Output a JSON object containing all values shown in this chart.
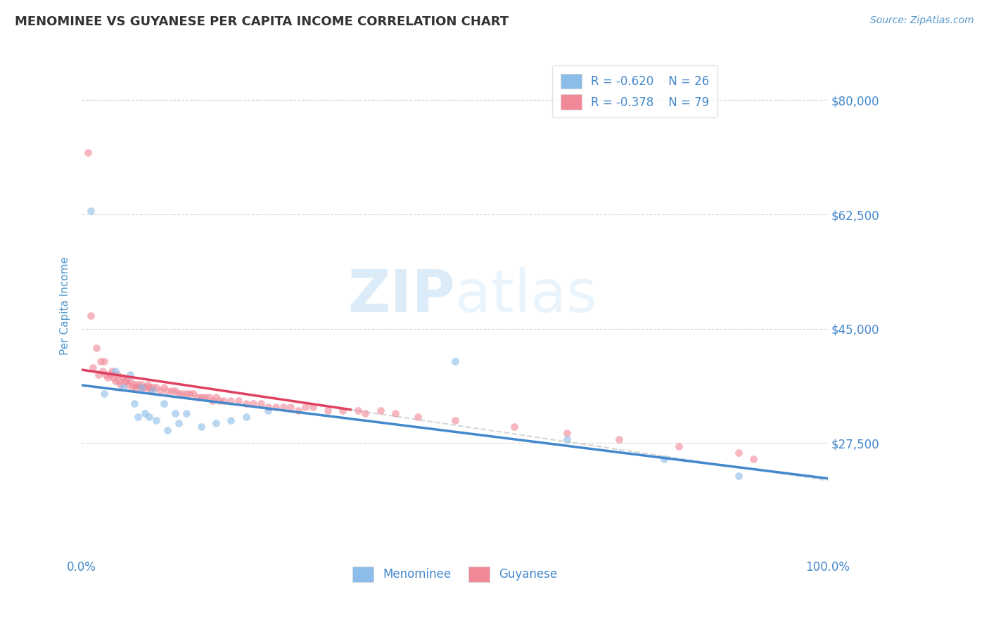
{
  "title": "MENOMINEE VS GUYANESE PER CAPITA INCOME CORRELATION CHART",
  "source_text": "Source: ZipAtlas.com",
  "ylabel": "Per Capita Income",
  "xlim": [
    0.0,
    1.0
  ],
  "ylim": [
    10000,
    87000
  ],
  "yticks": [
    27500,
    45000,
    62500,
    80000
  ],
  "ytick_labels": [
    "$27,500",
    "$45,000",
    "$62,500",
    "$80,000"
  ],
  "xticks": [
    0.0,
    1.0
  ],
  "xtick_labels": [
    "0.0%",
    "100.0%"
  ],
  "legend_r1": "R = -0.620",
  "legend_n1": "N = 26",
  "legend_r2": "R = -0.378",
  "legend_n2": "N = 79",
  "color_menominee": "#8bbde8",
  "color_guyanese": "#f08898",
  "color_trend_menominee": "#4488cc",
  "color_trend_guyanese": "#e04060",
  "color_trend_dashed": "#cccccc",
  "color_axis_label": "#5599cc",
  "color_tick_label": "#4488cc",
  "color_title": "#333333",
  "color_source": "#5599cc",
  "watermark_zip": "ZIP",
  "watermark_atlas": "atlas",
  "background_color": "#ffffff",
  "grid_color": "#cccccc",
  "menominee_x": [
    0.012,
    0.03,
    0.045,
    0.055,
    0.065,
    0.07,
    0.075,
    0.08,
    0.085,
    0.09,
    0.095,
    0.1,
    0.11,
    0.115,
    0.125,
    0.13,
    0.14,
    0.16,
    0.18,
    0.2,
    0.22,
    0.25,
    0.5,
    0.65,
    0.78,
    0.88
  ],
  "menominee_y": [
    63000,
    35000,
    38500,
    36000,
    38000,
    33500,
    31500,
    36000,
    32000,
    31500,
    35500,
    31000,
    33500,
    29500,
    32000,
    30500,
    32000,
    30000,
    30500,
    31000,
    31500,
    32500,
    40000,
    28000,
    25000,
    22500
  ],
  "guyanese_x": [
    0.008,
    0.012,
    0.015,
    0.02,
    0.022,
    0.025,
    0.028,
    0.03,
    0.032,
    0.035,
    0.038,
    0.04,
    0.042,
    0.045,
    0.048,
    0.05,
    0.052,
    0.055,
    0.058,
    0.06,
    0.062,
    0.065,
    0.068,
    0.07,
    0.072,
    0.075,
    0.078,
    0.08,
    0.082,
    0.085,
    0.088,
    0.09,
    0.092,
    0.095,
    0.1,
    0.105,
    0.11,
    0.115,
    0.12,
    0.125,
    0.13,
    0.135,
    0.14,
    0.145,
    0.15,
    0.155,
    0.16,
    0.165,
    0.17,
    0.175,
    0.18,
    0.185,
    0.19,
    0.2,
    0.21,
    0.22,
    0.23,
    0.24,
    0.25,
    0.26,
    0.27,
    0.28,
    0.29,
    0.3,
    0.31,
    0.33,
    0.35,
    0.37,
    0.38,
    0.4,
    0.42,
    0.45,
    0.5,
    0.58,
    0.65,
    0.72,
    0.8,
    0.88,
    0.9
  ],
  "guyanese_y": [
    72000,
    47000,
    39000,
    42000,
    38000,
    40000,
    38500,
    40000,
    38000,
    37500,
    38000,
    38500,
    37500,
    37000,
    38000,
    37000,
    36500,
    37500,
    37000,
    37000,
    36500,
    37000,
    36000,
    36500,
    36000,
    36500,
    36000,
    36500,
    36000,
    36000,
    36500,
    36000,
    35500,
    36000,
    36000,
    35500,
    36000,
    35500,
    35500,
    35500,
    35000,
    35000,
    35000,
    35000,
    35000,
    34500,
    34500,
    34500,
    34500,
    34000,
    34500,
    34000,
    34000,
    34000,
    34000,
    33500,
    33500,
    33500,
    33000,
    33000,
    33000,
    33000,
    32500,
    33000,
    33000,
    32500,
    32500,
    32500,
    32000,
    32500,
    32000,
    31500,
    31000,
    30000,
    29000,
    28000,
    27000,
    26000,
    25000
  ]
}
